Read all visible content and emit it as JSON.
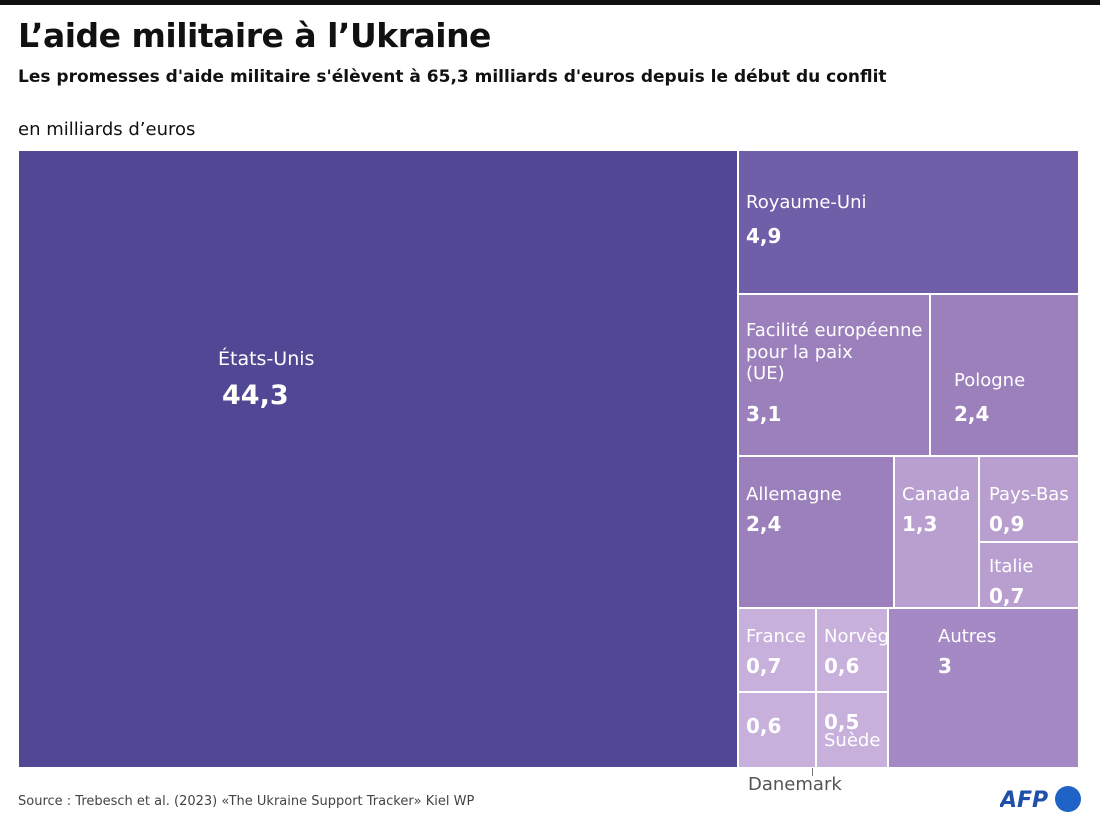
{
  "header": {
    "title": "L’aide militaire à l’Ukraine",
    "subtitle": "Les promesses d'aide militaire s'élèvent à 65,3 milliards d'euros depuis le début du conflit",
    "unit": "en milliards d’euros"
  },
  "footer": {
    "source": "Source : Trebesch et al. (2023) «The Ukraine Support Tracker» Kiel WP",
    "logo": "AFP"
  },
  "colors": {
    "us": "#514895",
    "uk": "#6f5ea8",
    "mid": "#9c80bc",
    "light": "#b89fd0",
    "lighter": "#c7b0dc",
    "autres": "#a589c4"
  },
  "chart_data": {
    "type": "treemap",
    "title": "L’aide militaire à l’Ukraine",
    "unit": "en milliards d’euros",
    "items": [
      {
        "name": "États-Unis",
        "value": 44.3,
        "label": "44,3"
      },
      {
        "name": "Royaume-Uni",
        "value": 4.9,
        "label": "4,9"
      },
      {
        "name": "Facilité européenne\npour la paix\n(UE)",
        "value": 3.1,
        "label": "3,1"
      },
      {
        "name": "Pologne",
        "value": 2.4,
        "label": "2,4"
      },
      {
        "name": "Allemagne",
        "value": 2.4,
        "label": "2,4"
      },
      {
        "name": "Canada",
        "value": 1.3,
        "label": "1,3"
      },
      {
        "name": "Pays-Bas",
        "value": 0.9,
        "label": "0,9"
      },
      {
        "name": "Italie",
        "value": 0.7,
        "label": "0,7"
      },
      {
        "name": "France",
        "value": 0.7,
        "label": "0,7"
      },
      {
        "name": "Norvège",
        "value": 0.6,
        "label": "0,6"
      },
      {
        "name": "Autres",
        "value": 3,
        "label": "3"
      },
      {
        "name": "Danemark",
        "value": 0.6,
        "label": "0,6"
      },
      {
        "name": "Suède",
        "value": 0.5,
        "label": "0,5"
      }
    ]
  }
}
